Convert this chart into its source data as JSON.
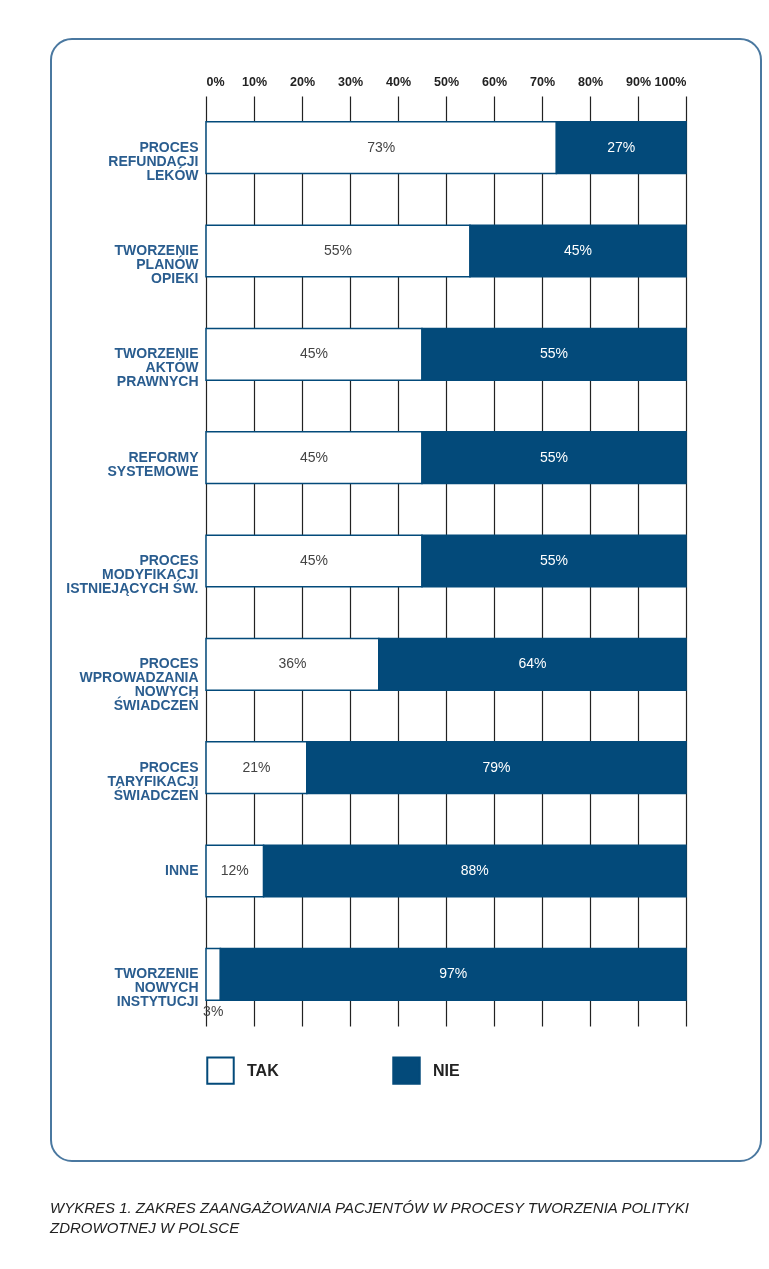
{
  "chart_data": {
    "type": "bar",
    "orientation": "horizontal",
    "stacked": true,
    "categories": [
      "PROCES\nREFUNDACJI\nLEKÓW",
      "TWORZENIE\nPLANÓW\nOPIEKI",
      "TWORZENIE\nAKTÓW\nPRAWNYCH",
      "REFORMY\nSYSTEMOWE",
      "PROCES\nMODYFIKACJI\nISTNIEJĄCYCH ŚW.",
      "PROCES\nWPROWADZANIA\nNOWYCH\nŚWIADCZEŃ",
      "PROCES\nTARYFIKACJI\nŚWIADCZEŃ",
      "INNE",
      "TWORZENIE\nNOWYCH\nINSTYTUCJI"
    ],
    "series": [
      {
        "name": "TAK",
        "color": "#ffffff",
        "values": [
          73,
          55,
          45,
          45,
          45,
          36,
          21,
          12,
          3
        ],
        "value_labels": [
          "73%",
          "55%",
          "45%",
          "45%",
          "45%",
          "36%",
          "21%",
          "12%",
          "3%"
        ]
      },
      {
        "name": "NIE",
        "color": "#034a7a",
        "values": [
          27,
          45,
          55,
          55,
          55,
          64,
          79,
          88,
          97
        ],
        "value_labels": [
          "27%",
          "45%",
          "55%",
          "55%",
          "55%",
          "64%",
          "79%",
          "88%",
          "97%"
        ]
      }
    ],
    "xlim": [
      0,
      100
    ],
    "xticks": [
      {
        "value": 0,
        "label": "0%"
      },
      {
        "value": 10,
        "label": "10%"
      },
      {
        "value": 20,
        "label": "20%"
      },
      {
        "value": 30,
        "label": "30%"
      },
      {
        "value": 40,
        "label": "40%"
      },
      {
        "value": 50,
        "label": "50%"
      },
      {
        "value": 60,
        "label": "60%"
      },
      {
        "value": 70,
        "label": "70%"
      },
      {
        "value": 80,
        "label": "80%"
      },
      {
        "value": 90,
        "label": "90%"
      },
      {
        "value": 100,
        "label": "100%"
      }
    ],
    "grid": true,
    "legend": "bottom",
    "annotations": [
      "WYKRES 1. ZAKRES ZAANGAŻOWANIA PACJENTÓW W PROCESY TWORZENIA POLITYKI ZDROWOTNEJ W POLSCE"
    ]
  }
}
